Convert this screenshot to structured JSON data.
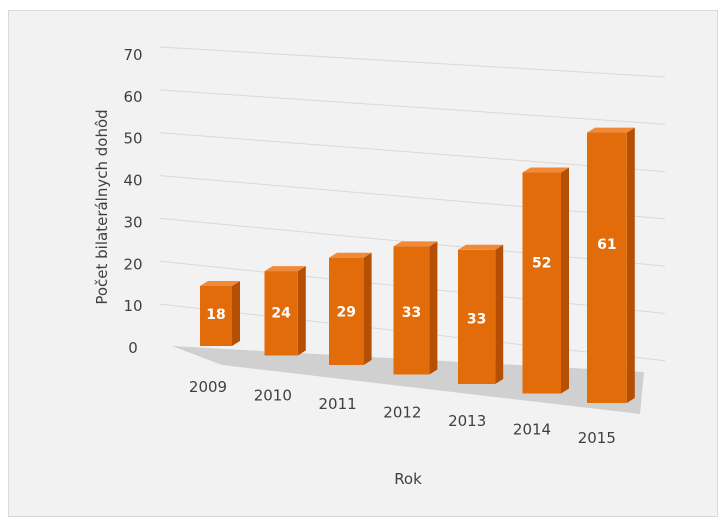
{
  "chart_data": {
    "type": "bar",
    "style": "3d-perspective",
    "title": "",
    "xlabel": "Rok",
    "ylabel": "Počet bilaterálnych dohôd",
    "categories": [
      "2009",
      "2010",
      "2011",
      "2012",
      "2013",
      "2014",
      "2015"
    ],
    "values": [
      18,
      24,
      29,
      33,
      33,
      52,
      61
    ],
    "data_labels": [
      "18",
      "24",
      "29",
      "33",
      "33",
      "52",
      "61"
    ],
    "ylim": [
      0,
      70
    ],
    "yticks": [
      "0",
      "10",
      "20",
      "30",
      "40",
      "50",
      "60",
      "70"
    ],
    "grid": true,
    "legend": "none",
    "colors": {
      "bar_front": "#e36c0a",
      "bar_side": "#b54f04",
      "bar_top": "#f08a3a",
      "background": "#f2f2f2",
      "floor": "#d0d0d0",
      "grid": "#d9d9d9"
    }
  }
}
